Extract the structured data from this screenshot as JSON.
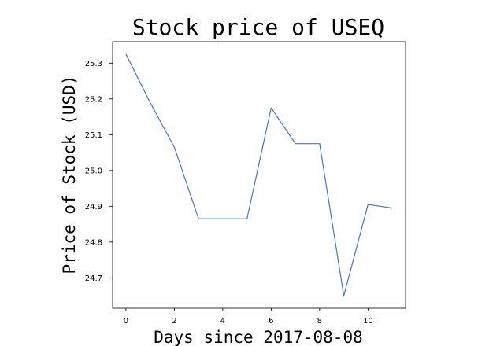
{
  "chart_data": {
    "type": "line",
    "title": "Stock price of USEQ",
    "xlabel": "Days since 2017-08-08",
    "ylabel": "Price of Stock (USD)",
    "x": [
      0,
      1,
      2,
      3,
      4,
      5,
      6,
      7,
      8,
      9,
      10,
      11
    ],
    "series": [
      {
        "values": [
          25.325,
          25.19,
          25.065,
          24.865,
          24.865,
          24.865,
          25.175,
          25.075,
          25.075,
          24.65,
          24.905,
          24.895
        ],
        "color": "#4a72c4"
      }
    ],
    "xlim": [
      -0.55,
      11.55
    ],
    "ylim": [
      24.615,
      25.36
    ],
    "xticks": [
      0,
      2,
      4,
      6,
      8,
      10
    ],
    "xtick_labels": [
      "0",
      "2",
      "4",
      "6",
      "8",
      "10"
    ],
    "yticks": [
      24.7,
      24.8,
      24.9,
      25.0,
      25.1,
      25.2,
      25.3
    ],
    "ytick_labels": [
      "24.7",
      "24.8",
      "24.9",
      "25.0",
      "25.1",
      "25.2",
      "25.3"
    ],
    "grid": false,
    "legend": "none"
  }
}
